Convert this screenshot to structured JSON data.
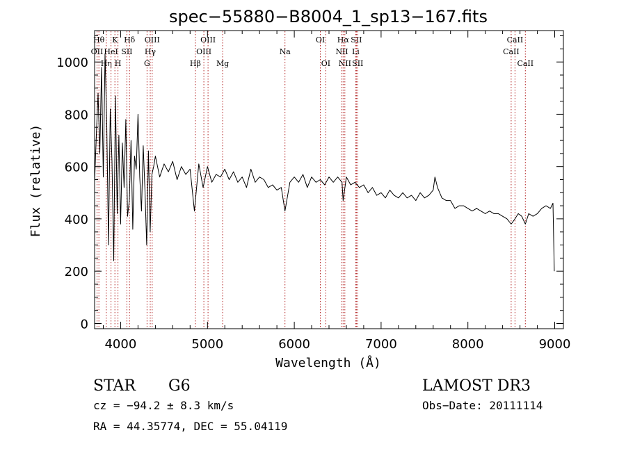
{
  "chart_data": {
    "type": "line",
    "title": "spec−55880−B8004_1_sp13−167.fits",
    "xlabel": "Wavelength (Å)",
    "ylabel": "Flux (relative)",
    "xlim": [
      3700,
      9100
    ],
    "ylim": [
      -20,
      1120
    ],
    "x_ticks": [
      4000,
      5000,
      6000,
      7000,
      8000,
      9000
    ],
    "x_tick_labels": [
      "4000",
      "5000",
      "6000",
      "7000",
      "8000",
      "9000"
    ],
    "y_ticks": [
      0,
      200,
      400,
      600,
      800,
      1000
    ],
    "y_tick_labels": [
      "0",
      "200",
      "400",
      "600",
      "800",
      "1000"
    ],
    "line_color": "#000000",
    "marker_color": "#b22222",
    "series": [
      {
        "name": "flux",
        "x": [
          3700,
          3720,
          3740,
          3760,
          3780,
          3800,
          3820,
          3840,
          3860,
          3880,
          3900,
          3920,
          3940,
          3960,
          3980,
          4000,
          4020,
          4040,
          4060,
          4080,
          4100,
          4120,
          4140,
          4160,
          4180,
          4200,
          4220,
          4240,
          4260,
          4280,
          4300,
          4320,
          4340,
          4360,
          4380,
          4400,
          4450,
          4500,
          4550,
          4600,
          4650,
          4700,
          4750,
          4800,
          4850,
          4900,
          4950,
          5000,
          5050,
          5100,
          5150,
          5200,
          5250,
          5300,
          5350,
          5400,
          5450,
          5500,
          5550,
          5600,
          5650,
          5700,
          5750,
          5800,
          5850,
          5893,
          5950,
          6000,
          6050,
          6100,
          6150,
          6200,
          6250,
          6300,
          6350,
          6400,
          6450,
          6500,
          6550,
          6563,
          6600,
          6650,
          6700,
          6750,
          6800,
          6850,
          6900,
          6950,
          7000,
          7050,
          7100,
          7150,
          7200,
          7250,
          7300,
          7350,
          7400,
          7450,
          7500,
          7550,
          7600,
          7620,
          7650,
          7700,
          7750,
          7800,
          7850,
          7900,
          7950,
          8000,
          8050,
          8100,
          8150,
          8200,
          8250,
          8300,
          8350,
          8400,
          8450,
          8498,
          8542,
          8580,
          8620,
          8662,
          8700,
          8750,
          8800,
          8850,
          8900,
          8950,
          8980,
          8995
        ],
        "y": [
          540,
          720,
          880,
          650,
          980,
          560,
          1030,
          760,
          300,
          820,
          620,
          240,
          870,
          420,
          720,
          380,
          690,
          520,
          780,
          410,
          470,
          700,
          360,
          640,
          590,
          800,
          560,
          430,
          680,
          510,
          300,
          660,
          350,
          570,
          600,
          640,
          560,
          610,
          580,
          620,
          550,
          600,
          570,
          590,
          430,
          610,
          520,
          600,
          540,
          570,
          560,
          590,
          550,
          580,
          540,
          560,
          520,
          590,
          540,
          560,
          550,
          520,
          530,
          510,
          520,
          430,
          540,
          560,
          540,
          570,
          520,
          560,
          540,
          550,
          530,
          560,
          540,
          560,
          540,
          470,
          560,
          530,
          540,
          520,
          530,
          500,
          520,
          490,
          500,
          480,
          510,
          490,
          480,
          500,
          480,
          490,
          470,
          500,
          480,
          490,
          510,
          560,
          520,
          480,
          470,
          470,
          440,
          450,
          450,
          440,
          430,
          440,
          430,
          420,
          430,
          420,
          420,
          410,
          400,
          380,
          400,
          420,
          410,
          380,
          420,
          410,
          420,
          440,
          450,
          440,
          460,
          200
        ]
      }
    ],
    "line_markers": [
      {
        "name": "HO",
        "label": "Hθ",
        "x": 3750,
        "row": 1
      },
      {
        "name": "OII",
        "label": "OII",
        "x": 3728,
        "row": 2
      },
      {
        "name": "Heta",
        "label": "Hη",
        "x": 3835,
        "row": 3
      },
      {
        "name": "K",
        "label": "K",
        "x": 3934,
        "row": 1
      },
      {
        "name": "HeI",
        "label": "HeI",
        "x": 3889,
        "row": 2
      },
      {
        "name": "H",
        "label": "H",
        "x": 3969,
        "row": 3
      },
      {
        "name": "Hdelta",
        "label": "Hδ",
        "x": 4102,
        "row": 1
      },
      {
        "name": "SII-4072",
        "label": "SII",
        "x": 4072,
        "row": 2
      },
      {
        "name": "OIII-4363",
        "label": "OIII",
        "x": 4363,
        "row": 1
      },
      {
        "name": "Hgamma",
        "label": "Hγ",
        "x": 4341,
        "row": 2
      },
      {
        "name": "G",
        "label": "G",
        "x": 4304,
        "row": 3
      },
      {
        "name": "OIII-5007",
        "label": "OIII",
        "x": 5007,
        "row": 1
      },
      {
        "name": "OIII-4959",
        "label": "OIII",
        "x": 4959,
        "row": 2
      },
      {
        "name": "Hbeta",
        "label": "Hβ",
        "x": 4861,
        "row": 3
      },
      {
        "name": "Mg",
        "label": "Mg",
        "x": 5175,
        "row": 3
      },
      {
        "name": "Na",
        "label": "Na",
        "x": 5893,
        "row": 2
      },
      {
        "name": "OI-6300",
        "label": "OI",
        "x": 6300,
        "row": 1
      },
      {
        "name": "OI-6363",
        "label": "OI",
        "x": 6363,
        "row": 3
      },
      {
        "name": "Halpha",
        "label": "Hα",
        "x": 6563,
        "row": 1
      },
      {
        "name": "NII-6548",
        "label": "NII",
        "x": 6548,
        "row": 2
      },
      {
        "name": "NII-6583",
        "label": "NII",
        "x": 6583,
        "row": 3
      },
      {
        "name": "SII-6716",
        "label": "SII",
        "x": 6716,
        "row": 1
      },
      {
        "name": "Li",
        "label": "Li",
        "x": 6708,
        "row": 2
      },
      {
        "name": "SII-6731",
        "label": "SII",
        "x": 6731,
        "row": 3
      },
      {
        "name": "CaII-8542",
        "label": "CaII",
        "x": 8542,
        "row": 1
      },
      {
        "name": "CaII-8498",
        "label": "CaII",
        "x": 8498,
        "row": 2
      },
      {
        "name": "CaII-8662",
        "label": "CaII",
        "x": 8662,
        "row": 3
      }
    ]
  },
  "info": {
    "object_class": "STAR",
    "subclass": "G6",
    "survey": "LAMOST DR3",
    "redshift_line": "cz = −94.2 ± 8.3 km/s",
    "obs_date_line": "Obs−Date: 20111114",
    "coords_line": "RA =  44.35774, DEC =  55.04119"
  }
}
